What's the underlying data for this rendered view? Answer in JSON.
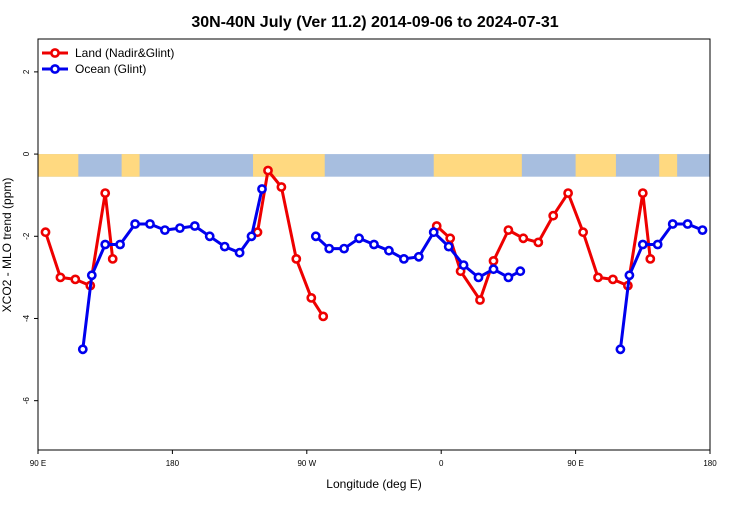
{
  "chart_data": {
    "type": "line",
    "title": "30N-40N July (Ver 11.2)   2014-09-06 to 2024-07-31",
    "xlabel": "Longitude (deg E)",
    "ylabel": "XCO2 - MLO trend (ppm)",
    "xlim": [
      90,
      540
    ],
    "ylim": [
      -7.2,
      2.8
    ],
    "x_ticks": [
      {
        "value": 90,
        "label": "90 E"
      },
      {
        "value": 180,
        "label": "180"
      },
      {
        "value": 270,
        "label": "90 W"
      },
      {
        "value": 360,
        "label": "0"
      },
      {
        "value": 450,
        "label": "90 E"
      },
      {
        "value": 540,
        "label": "180"
      }
    ],
    "y_ticks": [
      {
        "value": 2,
        "label": "2"
      },
      {
        "value": 0,
        "label": "0"
      },
      {
        "value": -2,
        "label": "-2"
      },
      {
        "value": -4,
        "label": "-4"
      },
      {
        "value": -6,
        "label": "-6"
      }
    ],
    "land_strip": {
      "y_top": 0,
      "y_bottom": -0.55,
      "ocean_color": "#a7bedf",
      "land_color": "#ffd980",
      "land_spans": [
        [
          90,
          117
        ],
        [
          146,
          158
        ],
        [
          234,
          282
        ],
        [
          355,
          414
        ],
        [
          450,
          477
        ],
        [
          506,
          518
        ]
      ]
    },
    "legend": {
      "position": "top-left"
    },
    "series": [
      {
        "name": "Land (Nadir&Glint)",
        "color": "#ee0000",
        "segments": [
          [
            [
              95,
              -1.9
            ],
            [
              105,
              -3.0
            ],
            [
              115,
              -3.05
            ],
            [
              125,
              -3.2
            ],
            [
              135,
              -0.95
            ],
            [
              140,
              -2.55
            ]
          ],
          [
            [
              237,
              -1.9
            ],
            [
              244,
              -0.4
            ],
            [
              253,
              -0.8
            ],
            [
              263,
              -2.55
            ],
            [
              273,
              -3.5
            ],
            [
              281,
              -3.95
            ]
          ],
          [
            [
              357,
              -1.75
            ],
            [
              366,
              -2.05
            ],
            [
              373,
              -2.85
            ],
            [
              386,
              -3.55
            ],
            [
              395,
              -2.6
            ],
            [
              405,
              -1.85
            ],
            [
              415,
              -2.05
            ],
            [
              425,
              -2.15
            ],
            [
              435,
              -1.5
            ],
            [
              445,
              -0.95
            ],
            [
              455,
              -1.9
            ],
            [
              465,
              -3.0
            ],
            [
              475,
              -3.05
            ],
            [
              485,
              -3.2
            ],
            [
              495,
              -0.95
            ],
            [
              500,
              -2.55
            ]
          ]
        ]
      },
      {
        "name": "Ocean (Glint)",
        "color": "#0000ee",
        "segments": [
          [
            [
              120,
              -4.75
            ],
            [
              126,
              -2.95
            ],
            [
              135,
              -2.2
            ],
            [
              145,
              -2.2
            ],
            [
              155,
              -1.7
            ],
            [
              165,
              -1.7
            ],
            [
              175,
              -1.85
            ],
            [
              185,
              -1.8
            ],
            [
              195,
              -1.75
            ],
            [
              205,
              -2.0
            ],
            [
              215,
              -2.25
            ],
            [
              225,
              -2.4
            ],
            [
              233,
              -2.0
            ],
            [
              240,
              -0.85
            ]
          ],
          [
            [
              276,
              -2.0
            ],
            [
              285,
              -2.3
            ],
            [
              295,
              -2.3
            ],
            [
              305,
              -2.05
            ],
            [
              315,
              -2.2
            ],
            [
              325,
              -2.35
            ],
            [
              335,
              -2.55
            ],
            [
              345,
              -2.5
            ],
            [
              355,
              -1.9
            ],
            [
              365,
              -2.25
            ],
            [
              375,
              -2.7
            ],
            [
              385,
              -3.0
            ],
            [
              395,
              -2.8
            ],
            [
              405,
              -3.0
            ],
            [
              413,
              -2.85
            ]
          ],
          [
            [
              480,
              -4.75
            ],
            [
              486,
              -2.95
            ],
            [
              495,
              -2.2
            ],
            [
              505,
              -2.2
            ],
            [
              515,
              -1.7
            ],
            [
              525,
              -1.7
            ],
            [
              535,
              -1.85
            ]
          ]
        ]
      }
    ]
  }
}
